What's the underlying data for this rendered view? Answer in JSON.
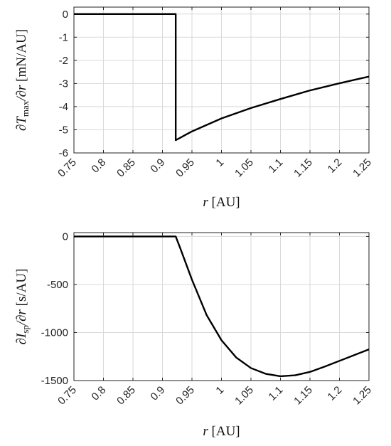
{
  "chart_data": [
    {
      "type": "line",
      "xlabel_var": "r",
      "xlabel_unit": "[AU]",
      "ylabel_main": "∂T",
      "ylabel_sub": "max",
      "ylabel_tail": "/∂r",
      "ylabel_unit": "[mN/AU]",
      "xlim": [
        0.75,
        1.25
      ],
      "ylim": [
        -6,
        0.3
      ],
      "xticks": [
        0.75,
        0.8,
        0.85,
        0.9,
        0.95,
        1,
        1.05,
        1.1,
        1.15,
        1.2,
        1.25
      ],
      "xtick_labels": [
        "0.75",
        "0.8",
        "0.85",
        "0.9",
        "0.95",
        "1",
        "1.05",
        "1.1",
        "1.15",
        "1.2",
        "1.25"
      ],
      "yticks": [
        0,
        -1,
        -2,
        -3,
        -4,
        -5,
        -6
      ],
      "ytick_labels": [
        "0",
        "-1",
        "-2",
        "-3",
        "-4",
        "-5",
        "-6"
      ],
      "grid": true,
      "series": [
        {
          "x": [
            0.75,
            0.9225,
            0.9225,
            0.9225,
            0.95,
            1.0,
            1.05,
            1.1,
            1.15,
            1.2,
            1.25
          ],
          "y": [
            0,
            0,
            -0.02,
            -5.45,
            -5.07,
            -4.51,
            -4.06,
            -3.67,
            -3.3,
            -2.99,
            -2.7
          ]
        }
      ]
    },
    {
      "type": "line",
      "xlabel_var": "r",
      "xlabel_unit": "[AU]",
      "ylabel_main": "∂I",
      "ylabel_sub": "sp",
      "ylabel_tail": "/∂r",
      "ylabel_unit": "[s/AU]",
      "xlim": [
        0.75,
        1.25
      ],
      "ylim": [
        -1500,
        40
      ],
      "xticks": [
        0.75,
        0.8,
        0.85,
        0.9,
        0.95,
        1,
        1.05,
        1.1,
        1.15,
        1.2,
        1.25
      ],
      "xtick_labels": [
        "0.75",
        "0.8",
        "0.85",
        "0.9",
        "0.95",
        "1",
        "1.05",
        "1.1",
        "1.15",
        "1.2",
        "1.25"
      ],
      "yticks": [
        0,
        -500,
        -1000,
        -1500
      ],
      "ytick_labels": [
        "0",
        "-500",
        "-1000",
        "-1500"
      ],
      "grid": true,
      "series": [
        {
          "x": [
            0.75,
            0.9225,
            0.93,
            0.95,
            0.975,
            1.0,
            1.025,
            1.05,
            1.075,
            1.1,
            1.125,
            1.15,
            1.175,
            1.2,
            1.225,
            1.25
          ],
          "y": [
            0,
            0,
            -120,
            -450,
            -820,
            -1080,
            -1260,
            -1370,
            -1430,
            -1455,
            -1445,
            -1410,
            -1355,
            -1295,
            -1235,
            -1175
          ]
        }
      ]
    }
  ]
}
